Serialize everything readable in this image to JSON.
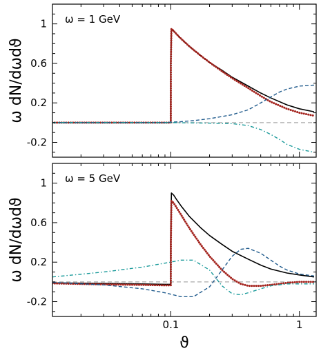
{
  "chart_data": [
    {
      "type": "line",
      "annotation": "ω = 1 GeV",
      "ylabel": "ω dN/dωdϑ",
      "xlabel": "",
      "xscale": "log",
      "xlim": [
        0.012,
        1.35
      ],
      "ylim": [
        -0.35,
        1.2
      ],
      "yticks": [
        -0.2,
        0.2,
        0.6,
        1
      ],
      "ytick_labels": [
        "-0.2",
        "0.2",
        "0.6",
        "1"
      ],
      "grid": false,
      "series": [
        {
          "style": "solid",
          "color": "#000000",
          "x": [
            0.012,
            0.05,
            0.0999,
            0.1,
            0.101,
            0.105,
            0.11,
            0.12,
            0.14,
            0.17,
            0.2,
            0.25,
            0.3,
            0.4,
            0.5,
            0.6,
            0.8,
            1.0,
            1.3
          ],
          "y": [
            0.0,
            0.0,
            0.0,
            0.6,
            0.95,
            0.93,
            0.9,
            0.85,
            0.77,
            0.68,
            0.61,
            0.53,
            0.46,
            0.37,
            0.3,
            0.25,
            0.18,
            0.14,
            0.11
          ]
        },
        {
          "style": "dotted",
          "color": "#a3221c",
          "x": [
            0.012,
            0.05,
            0.0999,
            0.1,
            0.101,
            0.105,
            0.11,
            0.12,
            0.14,
            0.17,
            0.2,
            0.25,
            0.3,
            0.4,
            0.5,
            0.6,
            0.8,
            1.0,
            1.3
          ],
          "y": [
            0.0,
            0.0,
            0.0,
            0.6,
            0.95,
            0.93,
            0.9,
            0.85,
            0.77,
            0.68,
            0.61,
            0.52,
            0.45,
            0.35,
            0.27,
            0.21,
            0.14,
            0.1,
            0.07
          ]
        },
        {
          "style": "dashed",
          "color": "#1f5a8c",
          "x": [
            0.012,
            0.05,
            0.09,
            0.1,
            0.12,
            0.15,
            0.2,
            0.3,
            0.4,
            0.5,
            0.6,
            0.7,
            0.8,
            1.0,
            1.3
          ],
          "y": [
            0.0,
            0.0,
            0.0,
            0.005,
            0.01,
            0.02,
            0.04,
            0.08,
            0.13,
            0.2,
            0.26,
            0.31,
            0.34,
            0.37,
            0.38
          ]
        },
        {
          "style": "dashdot",
          "color": "#1a9a9a",
          "x": [
            0.012,
            0.05,
            0.1,
            0.2,
            0.3,
            0.4,
            0.5,
            0.6,
            0.7,
            0.8,
            1.0,
            1.3
          ],
          "y": [
            0.0,
            0.0,
            0.0,
            -0.005,
            -0.01,
            -0.03,
            -0.07,
            -0.12,
            -0.17,
            -0.22,
            -0.27,
            -0.3
          ]
        },
        {
          "style": "dashed-gray",
          "color": "#aaaaaa",
          "x": [
            0.012,
            1.35
          ],
          "y": [
            0.0,
            0.0
          ]
        }
      ]
    },
    {
      "type": "line",
      "annotation": "ω = 5 GeV",
      "ylabel": "ω dN/dωdϑ",
      "xlabel": "ϑ",
      "xscale": "log",
      "xlim": [
        0.012,
        1.35
      ],
      "ylim": [
        -0.35,
        1.2
      ],
      "yticks": [
        -0.2,
        0.2,
        0.6,
        1
      ],
      "ytick_labels": [
        "-0.2",
        "0.2",
        "0.6",
        "1"
      ],
      "xticks": [
        0.1,
        1
      ],
      "xtick_labels": [
        "0.1",
        "1"
      ],
      "grid": false,
      "series": [
        {
          "style": "solid",
          "color": "#000000",
          "x": [
            0.012,
            0.03,
            0.06,
            0.09,
            0.0999,
            0.1,
            0.101,
            0.105,
            0.11,
            0.12,
            0.14,
            0.17,
            0.2,
            0.25,
            0.3,
            0.4,
            0.5,
            0.6,
            0.8,
            1.0,
            1.3
          ],
          "y": [
            -0.01,
            -0.015,
            -0.02,
            -0.025,
            -0.025,
            0.5,
            0.9,
            0.88,
            0.84,
            0.77,
            0.66,
            0.55,
            0.47,
            0.38,
            0.31,
            0.23,
            0.17,
            0.13,
            0.09,
            0.07,
            0.05
          ]
        },
        {
          "style": "dotted",
          "color": "#a3221c",
          "x": [
            0.012,
            0.03,
            0.06,
            0.09,
            0.0999,
            0.1,
            0.101,
            0.105,
            0.11,
            0.12,
            0.14,
            0.17,
            0.2,
            0.25,
            0.3,
            0.35,
            0.4,
            0.5,
            0.6,
            0.8,
            1.0,
            1.3
          ],
          "y": [
            -0.015,
            -0.025,
            -0.03,
            -0.035,
            -0.035,
            0.4,
            0.82,
            0.8,
            0.76,
            0.68,
            0.54,
            0.38,
            0.26,
            0.12,
            0.03,
            -0.02,
            -0.04,
            -0.04,
            -0.03,
            -0.01,
            0.0,
            0.0
          ]
        },
        {
          "style": "dashed",
          "color": "#1f5a8c",
          "x": [
            0.012,
            0.03,
            0.06,
            0.09,
            0.12,
            0.15,
            0.2,
            0.25,
            0.3,
            0.35,
            0.4,
            0.5,
            0.6,
            0.7,
            0.8,
            1.0,
            1.3
          ],
          "y": [
            -0.005,
            -0.03,
            -0.07,
            -0.11,
            -0.15,
            -0.15,
            -0.05,
            0.12,
            0.26,
            0.33,
            0.34,
            0.29,
            0.22,
            0.16,
            0.12,
            0.08,
            0.06
          ]
        },
        {
          "style": "dashdot",
          "color": "#1a9a9a",
          "x": [
            0.012,
            0.03,
            0.06,
            0.09,
            0.12,
            0.15,
            0.2,
            0.25,
            0.3,
            0.35,
            0.4,
            0.5,
            0.6,
            0.8,
            1.0,
            1.3
          ],
          "y": [
            0.05,
            0.1,
            0.15,
            0.19,
            0.22,
            0.22,
            0.12,
            -0.04,
            -0.12,
            -0.13,
            -0.11,
            -0.07,
            -0.04,
            -0.02,
            -0.02,
            -0.02
          ]
        },
        {
          "style": "dashed-gray",
          "color": "#aaaaaa",
          "x": [
            0.012,
            1.35
          ],
          "y": [
            0.0,
            0.0
          ]
        }
      ]
    }
  ]
}
